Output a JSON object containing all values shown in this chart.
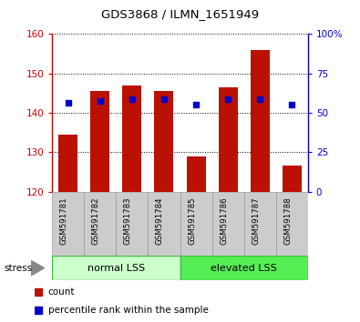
{
  "title": "GDS3868 / ILMN_1651949",
  "categories": [
    "GSM591781",
    "GSM591782",
    "GSM591783",
    "GSM591784",
    "GSM591785",
    "GSM591786",
    "GSM591787",
    "GSM591788"
  ],
  "bar_tops": [
    134.5,
    145.5,
    147.0,
    145.5,
    129.0,
    146.5,
    156.0,
    126.5
  ],
  "bar_bottom": 120,
  "percentile_values": [
    142.5,
    143.0,
    143.5,
    143.5,
    142.0,
    143.5,
    143.5,
    142.0
  ],
  "ylim_left": [
    120,
    160
  ],
  "ylim_right": [
    0,
    100
  ],
  "yticks_left": [
    120,
    130,
    140,
    150,
    160
  ],
  "yticks_right": [
    0,
    25,
    50,
    75,
    100
  ],
  "group1_label": "normal LSS",
  "group2_label": "elevated LSS",
  "group1_count": 4,
  "group2_count": 4,
  "stress_label": "stress",
  "legend_count_label": "count",
  "legend_percentile_label": "percentile rank within the sample",
  "bar_color": "#bb1100",
  "percentile_color": "#0000cc",
  "group1_color": "#ccffcc",
  "group2_color": "#55ee55",
  "tick_color_left": "#cc0000",
  "tick_color_right": "#0000cc",
  "label_bg_color": "#cccccc",
  "label_edge_color": "#999999"
}
